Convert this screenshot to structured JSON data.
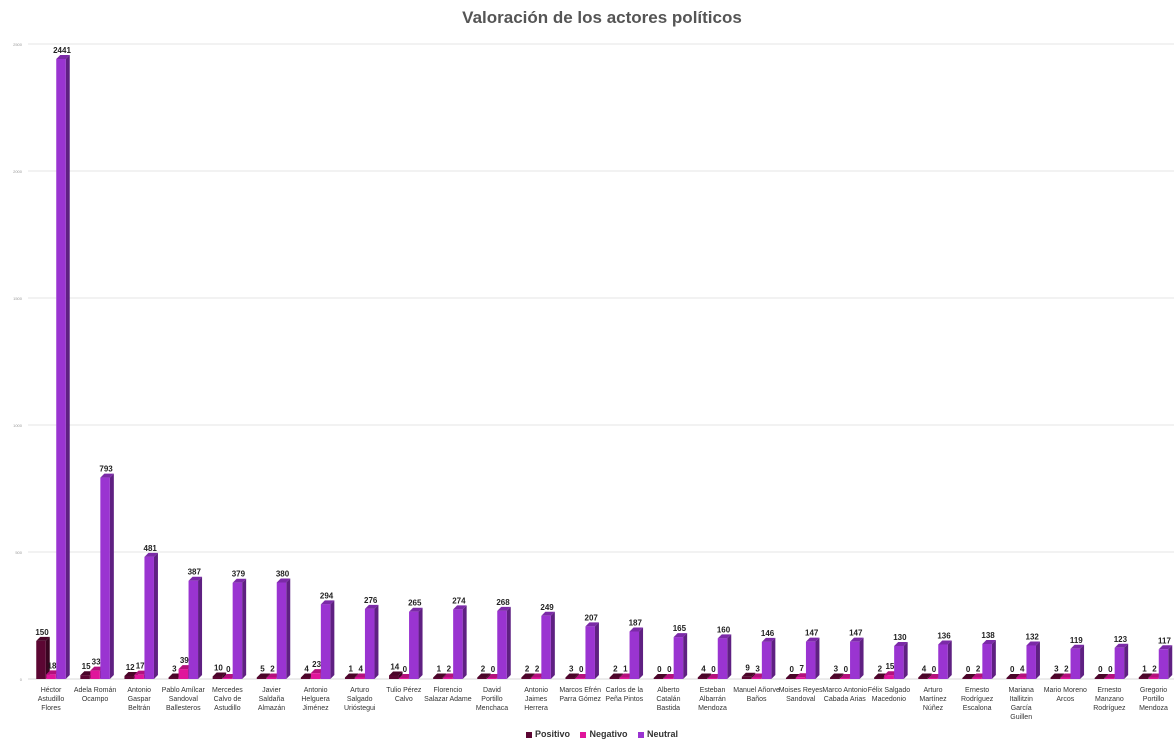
{
  "chart_data": {
    "type": "bar",
    "title": "Valoración de los actores políticos",
    "xlabel": "",
    "ylabel": "",
    "ylim": [
      0,
      2500
    ],
    "grid": true,
    "legend_position": "bottom",
    "yticks": [
      "0",
      "500",
      "1000",
      "1500",
      "2000",
      "2500"
    ],
    "categories": [
      "Héctor Astudillo Flores",
      "Adela Román Ocampo",
      "Antonio Gaspar Beltrán",
      "Pablo Amílcar Sandoval Ballesteros",
      "Mercedes Calvo de Astudillo",
      "Javier Saldaña Almazán",
      "Antonio Helguera Jiménez",
      "Arturo Salgado Urióstegui",
      "Tulio Pérez Calvo",
      "Florencio Salazar Adame",
      "David Portillo Menchaca",
      "Antonio Jaimes Herrera",
      "Marcos Efrén Parra Gómez",
      "Carlos de la Peña Pintos",
      "Alberto Catalán Bastida",
      "Esteban Albarrán Mendoza",
      "Manuel Añorve Baños",
      "Moises Reyes Sandoval",
      "Marco Antonio Cabada Arias",
      "Félix Salgado Macedonio",
      "Arturo Martínez Núñez",
      "Ernesto Rodríguez Escalona",
      "Mariana Itallitzin García Guillen",
      "Mario Moreno Arcos",
      "Ernesto Manzano Rodríguez",
      "Gregorio Portillo Mendoza"
    ],
    "series": [
      {
        "name": "Positivo",
        "color": "#5c0633",
        "values": [
          150,
          15,
          12,
          3,
          10,
          5,
          4,
          1,
          14,
          1,
          2,
          2,
          3,
          2,
          0,
          4,
          9,
          0,
          3,
          2,
          4,
          0,
          0,
          3,
          0,
          1
        ]
      },
      {
        "name": "Negativo",
        "color": "#e0159b",
        "values": [
          18,
          33,
          17,
          39,
          0,
          2,
          23,
          4,
          0,
          2,
          0,
          2,
          0,
          1,
          0,
          0,
          3,
          7,
          0,
          15,
          0,
          2,
          4,
          2,
          0,
          2
        ]
      },
      {
        "name": "Neutral",
        "color": "#9a34d1",
        "values": [
          2441,
          793,
          481,
          387,
          379,
          380,
          294,
          276,
          265,
          274,
          268,
          249,
          207,
          187,
          165,
          160,
          146,
          147,
          147,
          130,
          136,
          138,
          132,
          119,
          123,
          117
        ]
      }
    ]
  }
}
